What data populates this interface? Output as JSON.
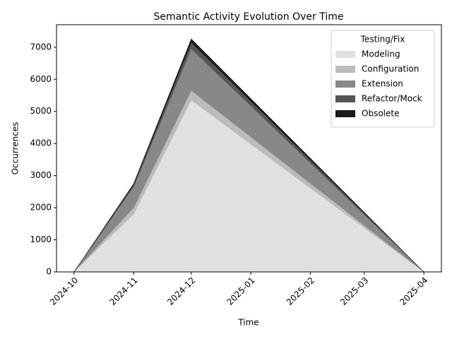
{
  "chart_data": {
    "type": "stacked_area",
    "title": "Semantic Activity Evolution Over Time",
    "xlabel": "Time",
    "ylabel": "Occurrences",
    "legend_title": "Testing/Fix",
    "legend": "upper right",
    "x": [
      "2024-10",
      "2024-11",
      "2024-12",
      "2025-04"
    ],
    "xticks": [
      "2024-10",
      "2024-11",
      "2024-12",
      "2025-01",
      "2025-02",
      "2025-03",
      "2025-04"
    ],
    "series": [
      {
        "name": "Modeling",
        "color": "#e0e0e0",
        "values": [
          0,
          1800,
          5350,
          0
        ]
      },
      {
        "name": "Configuration",
        "color": "#bbbbbb",
        "values": [
          0,
          200,
          300,
          0
        ]
      },
      {
        "name": "Extension",
        "color": "#888888",
        "values": [
          0,
          650,
          1300,
          0
        ]
      },
      {
        "name": "Refactor/Mock",
        "color": "#555555",
        "values": [
          0,
          70,
          200,
          0
        ]
      },
      {
        "name": "Obsolete",
        "color": "#1a1a1a",
        "values": [
          0,
          30,
          110,
          0
        ]
      }
    ],
    "ylim": [
      0,
      7700
    ],
    "yticks": [
      0,
      1000,
      2000,
      3000,
      4000,
      5000,
      6000,
      7000
    ]
  }
}
